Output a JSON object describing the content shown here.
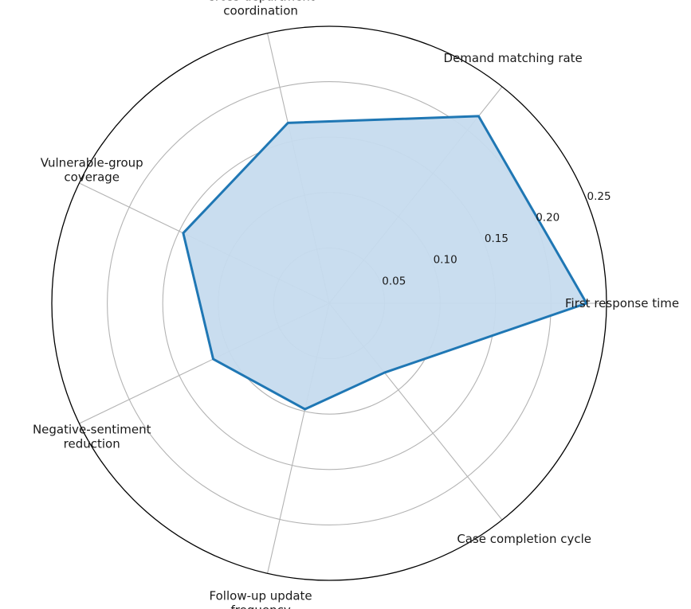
{
  "chart_data": {
    "type": "radar",
    "title": "",
    "categories": [
      "First response time",
      "Demand matching rate",
      "Cross-department coordination",
      "Vulnerable-group coverage",
      "Negative-sentiment reduction",
      "Follow-up update frequency",
      "Case completion cycle"
    ],
    "values": [
      0.232,
      0.216,
      0.167,
      0.146,
      0.116,
      0.098,
      0.08
    ],
    "rlim": [
      0,
      0.25
    ],
    "rticks": [
      0.05,
      0.1,
      0.15,
      0.2,
      0.25
    ],
    "rtick_labels": [
      "0.05",
      "0.10",
      "0.15",
      "0.20",
      "0.25"
    ],
    "grid": true,
    "colors": {
      "line": "#1f77b4",
      "fill": "#c6dbee",
      "grid": "#b3b3b3",
      "frame": "#000000"
    }
  }
}
